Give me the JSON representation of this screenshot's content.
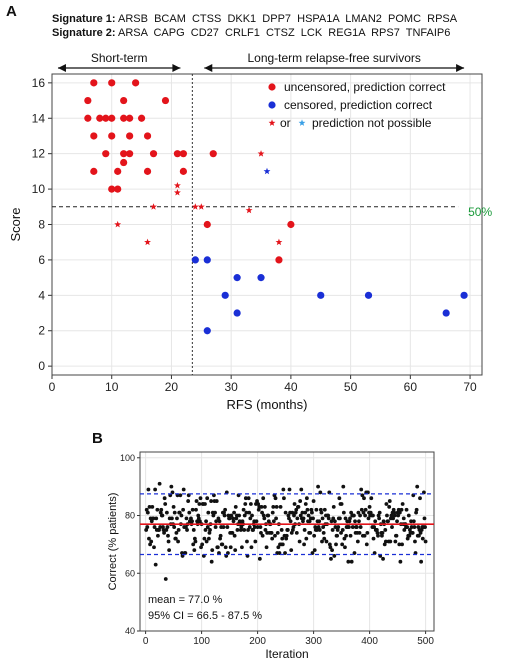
{
  "panel_a": {
    "letter": "A",
    "signature1_label": "Signature 1:",
    "signature1_genes": "ARSB  BCAM  CTSS  DKK1  DPP7  HSPA1A  LMAN2  POMC  RPSA",
    "signature2_label": "Signature 2:",
    "signature2_genes": "ARSA  CAPG  CD27  CRLF1  CTSZ  LCK  REG1A  RPS7  TNFAIP6"
  },
  "panel_b": {
    "letter": "B"
  },
  "colors": {
    "red": "#e3141b",
    "blue": "#1a2fd6",
    "green": "#1a9a3a",
    "mean_line": "#e3141b",
    "ci_line": "#1a2fd6"
  },
  "chart_data": [
    {
      "type": "scatter",
      "xlabel": "RFS (months)",
      "ylabel": "Score",
      "xlim": [
        0,
        72
      ],
      "ylim": [
        -0.5,
        16.5
      ],
      "xticks": [
        0,
        10,
        20,
        30,
        40,
        50,
        60,
        70
      ],
      "yticks": [
        0,
        2,
        4,
        6,
        8,
        10,
        12,
        14,
        16
      ],
      "grid": true,
      "annotations": {
        "short_term": "Short-term",
        "long_term": "Long-term relapse-free survivors",
        "threshold_label": "50%",
        "threshold_y": 9,
        "divider_x": 23.5
      },
      "legend": {
        "placement": "top-right",
        "entries": [
          {
            "marker": "dot",
            "color": "red",
            "label": "uncensored, prediction correct"
          },
          {
            "marker": "dot",
            "color": "blue",
            "label": "censored, prediction correct"
          },
          {
            "marker": "star-pair",
            "label_mid": "or",
            "label": "prediction not possible"
          }
        ]
      },
      "series": [
        {
          "name": "uncensored, prediction correct",
          "marker": "dot",
          "color": "red",
          "points": [
            [
              7,
              16
            ],
            [
              10,
              16
            ],
            [
              14,
              16
            ],
            [
              6,
              15
            ],
            [
              12,
              15
            ],
            [
              19,
              15
            ],
            [
              6,
              14
            ],
            [
              8,
              14
            ],
            [
              9,
              14
            ],
            [
              10,
              14
            ],
            [
              12,
              14
            ],
            [
              13,
              14
            ],
            [
              15,
              14
            ],
            [
              7,
              13
            ],
            [
              10,
              13
            ],
            [
              13,
              13
            ],
            [
              16,
              13
            ],
            [
              9,
              12
            ],
            [
              12,
              12
            ],
            [
              13,
              12
            ],
            [
              17,
              12
            ],
            [
              21,
              12
            ],
            [
              22,
              12
            ],
            [
              27,
              12
            ],
            [
              7,
              11
            ],
            [
              11,
              11
            ],
            [
              12,
              11.5
            ],
            [
              16,
              11
            ],
            [
              22,
              11
            ],
            [
              10,
              10
            ],
            [
              11,
              10
            ],
            [
              26,
              8
            ],
            [
              40,
              8
            ],
            [
              38,
              6
            ]
          ]
        },
        {
          "name": "censored, prediction correct",
          "marker": "dot",
          "color": "blue",
          "points": [
            [
              24,
              6
            ],
            [
              26,
              6
            ],
            [
              31,
              5
            ],
            [
              35,
              5
            ],
            [
              29,
              4
            ],
            [
              45,
              4
            ],
            [
              53,
              4
            ],
            [
              69,
              4
            ],
            [
              31,
              3
            ],
            [
              66,
              3
            ],
            [
              26,
              2
            ]
          ]
        },
        {
          "name": "prediction not possible (red)",
          "marker": "star",
          "color": "red",
          "points": [
            [
              35,
              12
            ],
            [
              21,
              10.2
            ],
            [
              21,
              9.8
            ],
            [
              17,
              9
            ],
            [
              24,
              9
            ],
            [
              25,
              9
            ],
            [
              33,
              8.8
            ],
            [
              11,
              8
            ],
            [
              38,
              7
            ],
            [
              16,
              7
            ]
          ]
        },
        {
          "name": "prediction not possible (blue)",
          "marker": "star",
          "color": "blue",
          "points": [
            [
              36,
              11
            ]
          ]
        }
      ]
    },
    {
      "type": "scatter",
      "xlabel": "Iteration",
      "ylabel": "Correct (% patients)",
      "xlim": [
        -10,
        515
      ],
      "ylim": [
        40,
        102
      ],
      "xticks": [
        0,
        100,
        200,
        300,
        400,
        500
      ],
      "yticks": [
        40,
        60,
        80,
        100
      ],
      "grid": true,
      "n_points": 500,
      "mean": 77.0,
      "ci": [
        66.5,
        87.5
      ],
      "stats_text": [
        "mean = 77.0 %",
        "95% CI = 66.5 - 87.5 %"
      ],
      "value_range_observed": [
        57,
        91
      ]
    }
  ]
}
